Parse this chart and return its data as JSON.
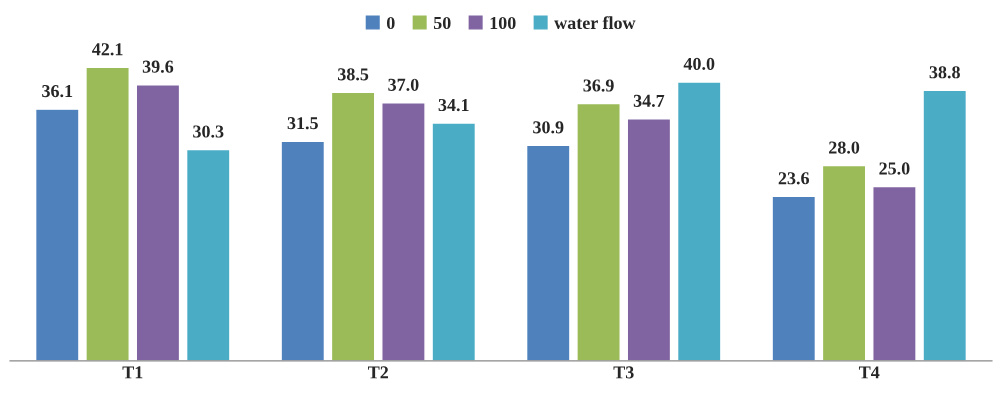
{
  "chart_data": {
    "type": "bar",
    "categories": [
      "T1",
      "T2",
      "T3",
      "T4"
    ],
    "series": [
      {
        "name": "0",
        "color": "#4f81bd",
        "values": [
          36.1,
          31.5,
          30.9,
          23.6
        ],
        "value_labels": [
          "36.1",
          "31.5",
          "30.9",
          "23.6"
        ]
      },
      {
        "name": "50",
        "color": "#9bbb59",
        "values": [
          42.1,
          38.5,
          36.9,
          28.0
        ],
        "value_labels": [
          "42.1",
          "38.5",
          "36.9",
          "28.0"
        ]
      },
      {
        "name": "100",
        "color": "#8064a2",
        "values": [
          39.6,
          37.0,
          34.7,
          25.0
        ],
        "value_labels": [
          "39.6",
          "37.0",
          "34.7",
          "25.0"
        ]
      },
      {
        "name": "water flow",
        "color": "#4bacc6",
        "values": [
          30.3,
          34.1,
          40.0,
          38.8
        ],
        "value_labels": [
          "30.3",
          "34.1",
          "40.0",
          "38.8"
        ]
      }
    ],
    "legend": "top",
    "grid": false
  }
}
